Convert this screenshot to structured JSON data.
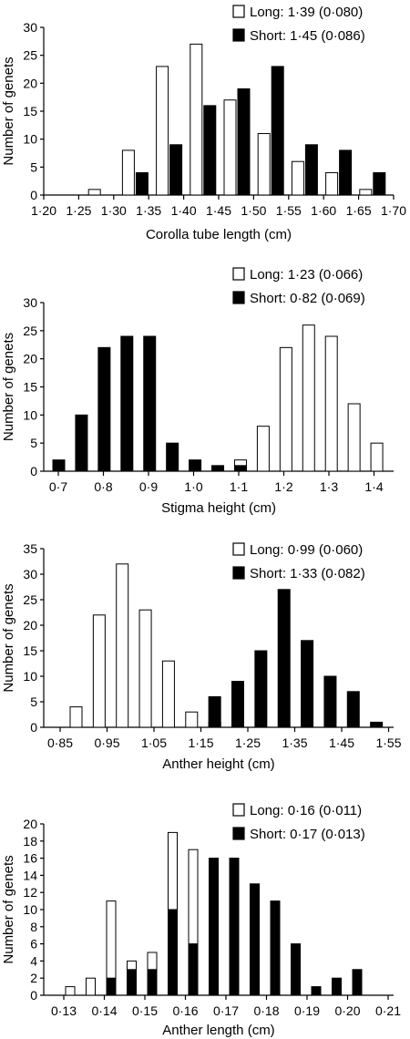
{
  "chart_data": [
    {
      "type": "bar",
      "xlabel": "Corolla tube length (cm)",
      "ylabel": "Number of genets",
      "ylim": [
        0,
        30
      ],
      "yticks": [
        "0",
        "5",
        "10",
        "15",
        "20",
        "25",
        "30"
      ],
      "xticks": [
        "1·20",
        "1·25",
        "1·30",
        "1·35",
        "1·40",
        "1·45",
        "1·50",
        "1·55",
        "1·60",
        "1·65",
        "1·70"
      ],
      "series": [
        {
          "name": "Long: 1·39 (0·080)",
          "fill": "#ffffff",
          "values": [
            0,
            1,
            8,
            23,
            27,
            17,
            11,
            6,
            4,
            1
          ]
        },
        {
          "name": "Short: 1·45 (0·086)",
          "fill": "#000000",
          "values": [
            0,
            0,
            4,
            9,
            16,
            19,
            23,
            9,
            8,
            4
          ]
        }
      ]
    },
    {
      "type": "bar",
      "xlabel": "Stigma height (cm)",
      "ylabel": "Number of genets",
      "ylim": [
        0,
        30
      ],
      "yticks": [
        "0",
        "5",
        "10",
        "15",
        "20",
        "25",
        "30"
      ],
      "xticks": [
        "0·7",
        "0·8",
        "0·9",
        "1·0",
        "1·1",
        "1·2",
        "1·3",
        "1·4"
      ],
      "series": [
        {
          "name": "Long: 1·23 (0·066)",
          "fill": "#ffffff",
          "values": [
            0,
            0,
            0,
            0,
            0,
            0,
            0,
            0,
            2,
            8,
            22,
            26,
            24,
            12,
            5
          ]
        },
        {
          "name": "Short: 0·82 (0·069)",
          "fill": "#000000",
          "values": [
            2,
            10,
            22,
            24,
            24,
            5,
            2,
            1,
            1,
            0,
            0,
            0,
            0,
            0,
            0
          ]
        }
      ]
    },
    {
      "type": "bar",
      "xlabel": "Anther height (cm)",
      "ylabel": "Number of genets",
      "ylim": [
        0,
        35
      ],
      "yticks": [
        "0",
        "5",
        "10",
        "15",
        "20",
        "25",
        "30",
        "35"
      ],
      "xticks": [
        "0·85",
        "0·95",
        "1·05",
        "1·15",
        "1·25",
        "1·35",
        "1·45",
        "1·55"
      ],
      "series": [
        {
          "name": "Long: 0·99 (0·060)",
          "fill": "#ffffff",
          "values": [
            4,
            22,
            32,
            23,
            13,
            3,
            1,
            0,
            0,
            0,
            0,
            0,
            0,
            0
          ]
        },
        {
          "name": "Short: 1·33 (0·082)",
          "fill": "#000000",
          "values": [
            0,
            0,
            0,
            0,
            0,
            0,
            6,
            9,
            15,
            27,
            17,
            10,
            7,
            1
          ]
        }
      ]
    },
    {
      "type": "bar",
      "xlabel": "Anther length (cm)",
      "ylabel": "Number of genets",
      "ylim": [
        0,
        20
      ],
      "yticks": [
        "0",
        "2",
        "4",
        "6",
        "8",
        "10",
        "12",
        "14",
        "16",
        "18",
        "20"
      ],
      "xticks": [
        "0·13",
        "0·14",
        "0·15",
        "0·16",
        "0·17",
        "0·18",
        "0·19",
        "0·20",
        "0·21"
      ],
      "series": [
        {
          "name": "Long: 0·16 (0·011)",
          "fill": "#ffffff",
          "values": [
            1,
            2,
            11,
            4,
            5,
            19,
            17,
            12,
            15,
            8,
            5,
            0,
            0,
            0,
            0,
            0
          ]
        },
        {
          "name": "Short: 0·17 (0·013)",
          "fill": "#000000",
          "values": [
            0,
            0,
            2,
            3,
            3,
            10,
            6,
            16,
            16,
            13,
            11,
            6,
            1,
            2,
            3,
            0
          ]
        }
      ]
    }
  ]
}
